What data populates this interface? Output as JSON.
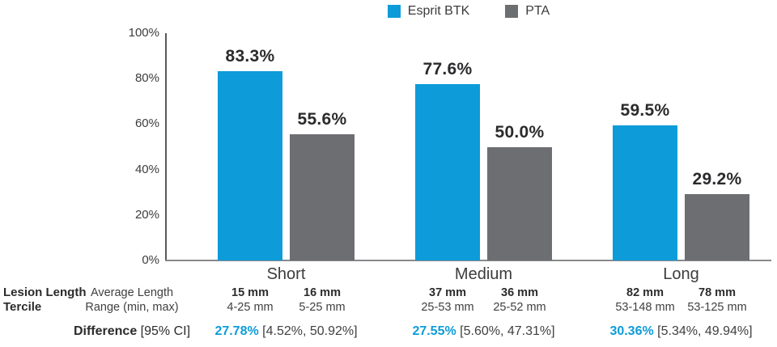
{
  "legend": [
    {
      "label": "Esprit BTK",
      "color": "#0d9cd9",
      "icon": "esprit-btk-swatch"
    },
    {
      "label": "PTA",
      "color": "#6d6e71",
      "icon": "pta-swatch"
    }
  ],
  "chart_data": {
    "type": "bar",
    "title": "",
    "categories": [
      "Short",
      "Medium",
      "Long"
    ],
    "series": [
      {
        "name": "Esprit BTK",
        "color": "#0d9cd9",
        "values": [
          83.3,
          77.6,
          59.5
        ],
        "value_labels": [
          "83.3%",
          "77.6%",
          "59.5%"
        ]
      },
      {
        "name": "PTA",
        "color": "#6d6e71",
        "values": [
          55.6,
          50.0,
          29.2
        ],
        "value_labels": [
          "55.6%",
          "50.0%",
          "29.2%"
        ]
      }
    ],
    "y_axis": {
      "min": 0,
      "max": 100,
      "tick_labels": [
        "100%",
        "80%",
        "60%",
        "40%",
        "20%",
        "0%"
      ],
      "grid": false
    },
    "legend_position": "top-center"
  },
  "table": {
    "row_header": {
      "line1": "Lesion Length",
      "line2": "Tercile"
    },
    "stat_header": {
      "line1": "Average Length",
      "line2": "Range (min, max)"
    },
    "difference_label": {
      "bold": "Difference",
      "rest": " [95% CI]"
    },
    "groups": [
      {
        "category": "Short",
        "esprit": {
          "avg": "15 mm",
          "range": "4-25 mm"
        },
        "pta": {
          "avg": "16 mm",
          "range": "5-25 mm"
        },
        "difference": "27.78%",
        "ci": " [4.52%, 50.92%]"
      },
      {
        "category": "Medium",
        "esprit": {
          "avg": "37 mm",
          "range": "25-53 mm"
        },
        "pta": {
          "avg": "36 mm",
          "range": "25-52 mm"
        },
        "difference": "27.55%",
        "ci": " [5.60%, 47.31%]"
      },
      {
        "category": "Long",
        "esprit": {
          "avg": "82 mm",
          "range": "53-148 mm"
        },
        "pta": {
          "avg": "78 mm",
          "range": "53-125 mm"
        },
        "difference": "30.36%",
        "ci": " [5.34%, 49.94%]"
      }
    ]
  },
  "colors": {
    "esprit_blue": "#0d9cd9",
    "pta_gray": "#6d6e71",
    "text_dark": "#2b2b2d",
    "axis": "#58595b",
    "baseline": "#88898c"
  }
}
